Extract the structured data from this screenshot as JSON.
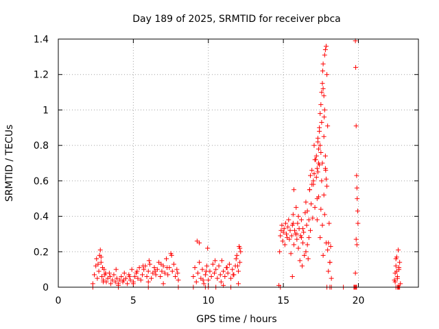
{
  "chart_data": {
    "type": "scatter",
    "title": "Day 189 of 2025, SRMTID for receiver pbca",
    "xlabel": "GPS time / hours",
    "ylabel": "SRMTID / TECUs",
    "xlim": [
      0,
      24
    ],
    "ylim": [
      0,
      1.4
    ],
    "xticks": [
      0,
      5,
      10,
      15,
      20
    ],
    "yticks": [
      0,
      0.2,
      0.4,
      0.6,
      0.8,
      1,
      1.2,
      1.4
    ],
    "xtick_labels": [
      "0",
      "5",
      "10",
      "15",
      "20"
    ],
    "ytick_labels": [
      "0",
      "0.2",
      "0.4",
      "0.6",
      "0.8",
      "1",
      "1.2",
      "1.4"
    ],
    "grid": true,
    "marker": "+",
    "color": "#ff0000",
    "series": [
      {
        "name": "SRMTID",
        "x": [
          2.3,
          2.4,
          2.5,
          2.55,
          2.6,
          2.7,
          2.75,
          2.8,
          2.85,
          2.9,
          2.95,
          3.0,
          3.05,
          3.1,
          3.2,
          3.3,
          3.4,
          3.5,
          3.6,
          3.7,
          3.8,
          3.9,
          4.0,
          4.1,
          4.2,
          4.3,
          4.4,
          4.5,
          4.6,
          4.7,
          4.8,
          4.9,
          5.0,
          5.1,
          5.2,
          5.3,
          5.4,
          5.5,
          5.6,
          5.7,
          5.8,
          5.9,
          6.0,
          6.1,
          6.2,
          6.3,
          6.4,
          6.5,
          6.6,
          6.7,
          6.8,
          6.9,
          7.0,
          7.1,
          7.2,
          7.3,
          7.4,
          7.5,
          7.6,
          7.7,
          7.8,
          7.9,
          8.0,
          2.65,
          2.85,
          3.15,
          3.45,
          3.85,
          4.35,
          4.75,
          5.25,
          5.65,
          6.05,
          6.45,
          6.85,
          7.25,
          7.55,
          7.95,
          3.0,
          4.0,
          5.0,
          6.0,
          7.0,
          9.0,
          9.1,
          9.2,
          9.3,
          9.4,
          9.5,
          9.6,
          9.7,
          9.8,
          9.9,
          9.95,
          10.0,
          10.1,
          10.2,
          10.3,
          10.4,
          10.5,
          10.6,
          10.7,
          10.8,
          10.9,
          11.0,
          11.1,
          11.2,
          11.3,
          11.4,
          11.5,
          11.6,
          11.7,
          11.8,
          11.9,
          12.0,
          12.1,
          12.15,
          9.25,
          9.65,
          9.85,
          10.45,
          10.85,
          11.25,
          11.65,
          11.95,
          12.05,
          11.85,
          12.1,
          9.4,
          9.8,
          10.5,
          11.0,
          11.5,
          12.0,
          14.7,
          14.75,
          14.8,
          14.85,
          14.9,
          14.95,
          15.0,
          15.05,
          15.1,
          15.15,
          15.2,
          15.25,
          15.3,
          15.35,
          15.4,
          15.45,
          15.5,
          15.55,
          15.6,
          15.65,
          15.7,
          15.75,
          15.8,
          15.85,
          15.9,
          15.95,
          16.0,
          16.05,
          16.1,
          16.15,
          16.2,
          16.25,
          16.3,
          16.35,
          16.4,
          16.45,
          16.5,
          16.55,
          16.6,
          16.65,
          16.7,
          16.75,
          16.8,
          16.85,
          16.9,
          16.95,
          17.0,
          17.05,
          17.1,
          17.15,
          17.2,
          17.25,
          17.3,
          17.35,
          17.4,
          17.45,
          17.5,
          17.55,
          17.6,
          17.65,
          17.7,
          17.75,
          17.8,
          17.85,
          17.9,
          17.95,
          18.0,
          18.05,
          18.1,
          18.15,
          18.2,
          15.6,
          15.65,
          15.7,
          16.8,
          16.9,
          17.0,
          17.05,
          17.1,
          17.2,
          17.25,
          17.3,
          17.35,
          17.4,
          17.45,
          17.5,
          17.55,
          17.6,
          17.62,
          17.65,
          17.7,
          17.72,
          17.75,
          17.8,
          17.85,
          17.9,
          17.95,
          17.8,
          17.82,
          17.85,
          17.75,
          17.7,
          17.6,
          17.55,
          17.4,
          17.45,
          17.5,
          17.35,
          17.3,
          17.25,
          17.65,
          16.5,
          16.6,
          16.7,
          16.75,
          16.3,
          16.2,
          15.9,
          16.0,
          18.0,
          18.1,
          19.8,
          19.82,
          19.85,
          19.88,
          19.9,
          19.92,
          19.95,
          19.97,
          19.85,
          19.9,
          19.8,
          19.88,
          22.4,
          22.45,
          22.5,
          22.55,
          22.6,
          22.65,
          22.7,
          22.75,
          22.8,
          22.5,
          22.6,
          22.7,
          22.65,
          22.55,
          22.45,
          2.3,
          4.0,
          6.0,
          8.0,
          9.0,
          10.0,
          14.8,
          17.9,
          18.1,
          18.2,
          19.0,
          19.7,
          19.75,
          19.8,
          19.85,
          22.5,
          22.6,
          22.7,
          22.75
        ],
        "y": [
          0.02,
          0.07,
          0.12,
          0.16,
          0.05,
          0.09,
          0.18,
          0.21,
          0.14,
          0.06,
          0.11,
          0.04,
          0.1,
          0.07,
          0.03,
          0.05,
          0.08,
          0.02,
          0.04,
          0.07,
          0.03,
          0.05,
          0.02,
          0.04,
          0.06,
          0.03,
          0.08,
          0.05,
          0.02,
          0.07,
          0.04,
          0.1,
          0.03,
          0.06,
          0.08,
          0.05,
          0.11,
          0.04,
          0.07,
          0.1,
          0.12,
          0.06,
          0.09,
          0.13,
          0.05,
          0.08,
          0.11,
          0.07,
          0.1,
          0.14,
          0.06,
          0.09,
          0.12,
          0.08,
          0.16,
          0.07,
          0.11,
          0.19,
          0.09,
          0.13,
          0.06,
          0.1,
          0.04,
          0.13,
          0.17,
          0.08,
          0.06,
          0.1,
          0.04,
          0.06,
          0.09,
          0.12,
          0.15,
          0.09,
          0.13,
          0.11,
          0.18,
          0.08,
          0.03,
          0.01,
          0.02,
          0.03,
          0.02,
          0.06,
          0.11,
          0.03,
          0.08,
          0.14,
          0.05,
          0.1,
          0.02,
          0.07,
          0.12,
          0.22,
          0.04,
          0.09,
          0.06,
          0.13,
          0.08,
          0.1,
          0.05,
          0.12,
          0.07,
          0.15,
          0.09,
          0.06,
          0.11,
          0.08,
          0.13,
          0.05,
          0.1,
          0.07,
          0.12,
          0.18,
          0.09,
          0.14,
          0.2,
          0.26,
          0.04,
          0.09,
          0.15,
          0.03,
          0.11,
          0.07,
          0.12,
          0.23,
          0.16,
          0.22,
          0.25,
          0.0,
          0.0,
          0.01,
          0.0,
          0.02,
          0.01,
          0.2,
          0.29,
          0.32,
          0.35,
          0.26,
          0.31,
          0.33,
          0.24,
          0.36,
          0.3,
          0.28,
          0.34,
          0.38,
          0.27,
          0.32,
          0.19,
          0.29,
          0.35,
          0.41,
          0.24,
          0.32,
          0.3,
          0.45,
          0.27,
          0.36,
          0.22,
          0.33,
          0.15,
          0.29,
          0.38,
          0.12,
          0.25,
          0.31,
          0.18,
          0.42,
          0.2,
          0.35,
          0.24,
          0.16,
          0.28,
          0.55,
          0.32,
          0.47,
          0.66,
          0.39,
          0.58,
          0.8,
          0.45,
          0.72,
          0.62,
          0.38,
          0.84,
          0.51,
          0.69,
          0.28,
          0.44,
          0.6,
          0.35,
          0.18,
          0.52,
          0.41,
          0.67,
          0.25,
          0.57,
          0.21,
          0.09,
          0.36,
          0.14,
          0.23,
          0.05,
          0.06,
          0.36,
          0.55,
          0.63,
          0.58,
          0.6,
          0.64,
          0.72,
          0.74,
          0.67,
          0.82,
          0.78,
          0.9,
          0.98,
          1.03,
          1.1,
          1.15,
          1.22,
          1.26,
          1.08,
          0.96,
          1.31,
          1.34,
          1.36,
          1.2,
          0.91,
          0.74,
          0.66,
          0.61,
          1.0,
          0.85,
          0.7,
          0.93,
          0.88,
          0.8,
          0.76,
          0.7,
          0.65,
          0.5,
          1.12,
          0.48,
          0.43,
          0.38,
          0.55,
          0.33,
          0.28,
          0.3,
          0.4,
          0.25,
          0.14,
          1.39,
          1.24,
          0.91,
          0.63,
          0.56,
          0.5,
          0.43,
          0.36,
          0.27,
          0.24,
          0.08,
          0.0,
          0.04,
          0.08,
          0.12,
          0.17,
          0.06,
          0.21,
          0.1,
          0.14,
          0.02,
          0.16,
          0.05,
          0.11,
          0.0,
          0.09,
          0.03,
          0.0,
          0.0,
          0.0,
          0.0,
          0.0,
          0.0,
          0.0,
          0.0,
          0.0,
          0.0,
          0.0,
          0.0,
          0.0,
          0.0,
          0.0,
          0.0,
          0.0,
          0.0,
          0.0
        ]
      }
    ]
  }
}
